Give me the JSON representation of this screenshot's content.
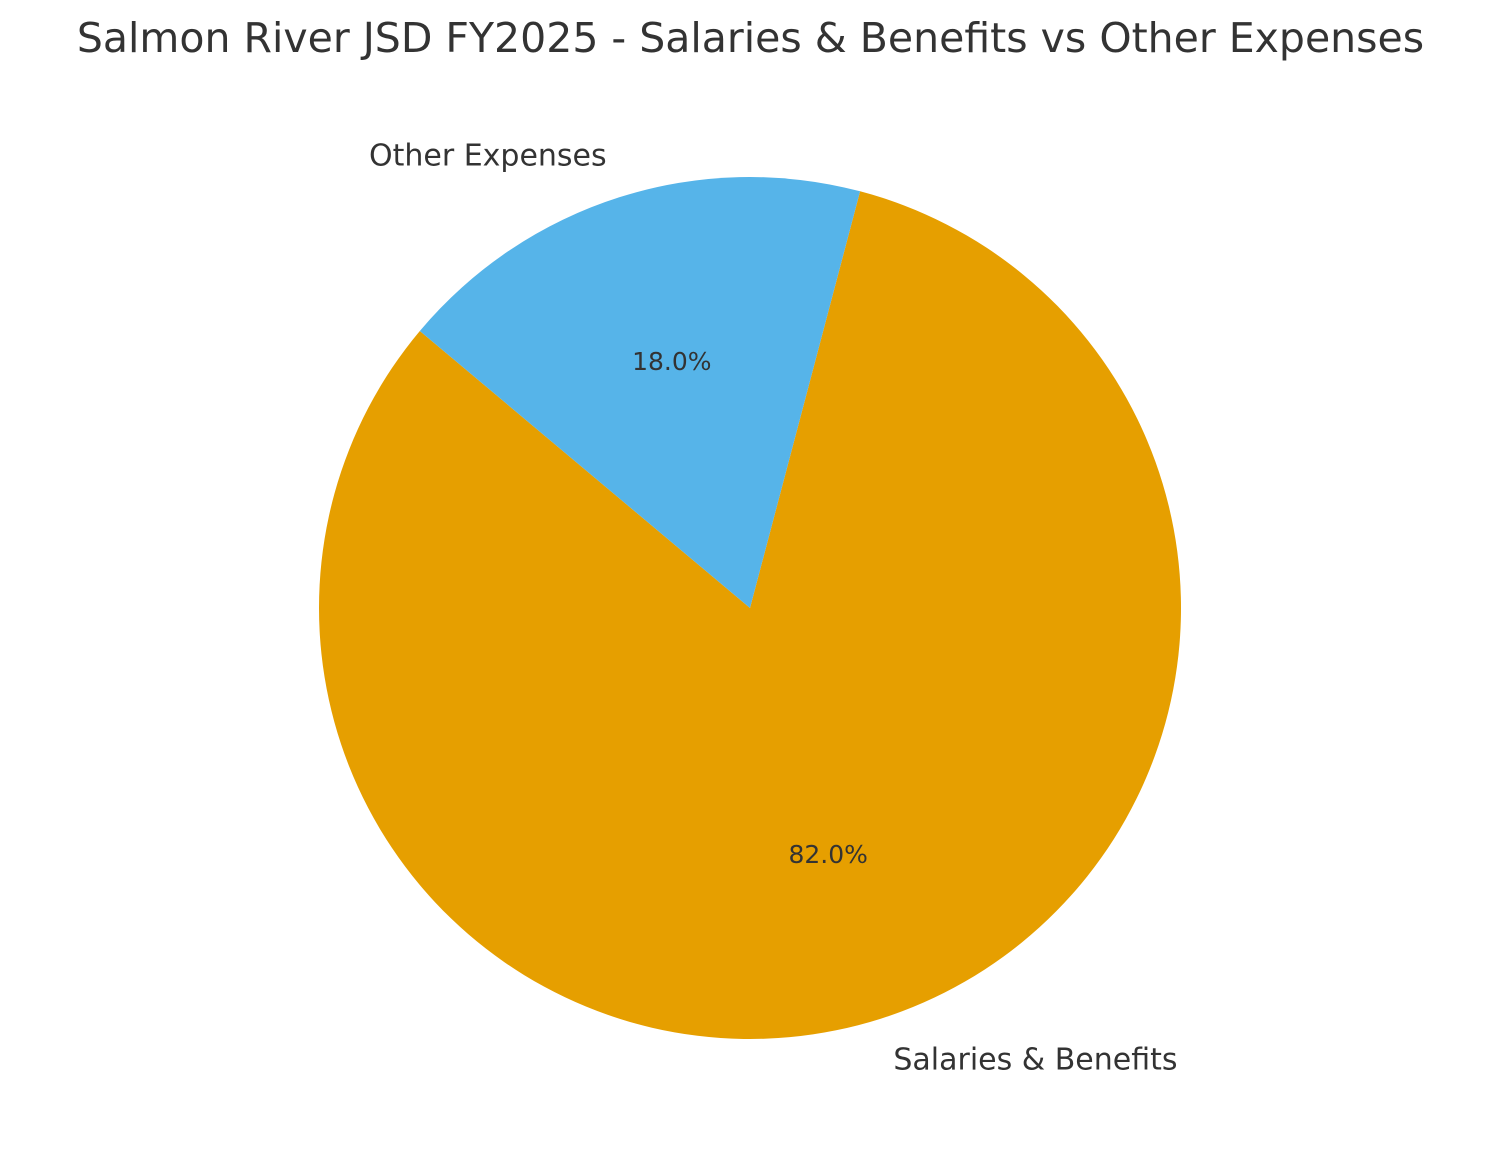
{
  "chart_data": {
    "type": "pie",
    "title": "Salmon River JSD FY2025 - Salaries & Benefits vs Other Expenses",
    "slices": [
      {
        "label": "Salaries & Benefits",
        "value": 82.0,
        "pct_label": "82.0%",
        "color": "#E69F00"
      },
      {
        "label": "Other Expenses",
        "value": 18.0,
        "pct_label": "18.0%",
        "color": "#56B4E9"
      }
    ],
    "start_angle_deg": 140,
    "direction": "counterclockwise"
  }
}
